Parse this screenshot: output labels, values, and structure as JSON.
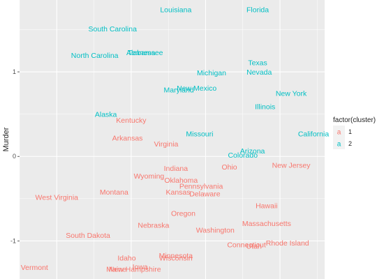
{
  "chart_data": {
    "type": "scatter",
    "ylabel": "Murder",
    "y_ticks": [
      1,
      0,
      -1
    ],
    "y_tick_labels": [
      "1",
      "0",
      "-1"
    ],
    "x_gridlines": [
      -1.5,
      -0.5,
      0.5,
      1.5
    ],
    "xlim": [
      -2.0,
      2.1
    ],
    "ylim": [
      -1.45,
      1.85
    ],
    "grid": true,
    "legend": {
      "title": "factor(cluster)",
      "placement": "right",
      "key_glyph": "a",
      "entries": [
        {
          "label": "1",
          "color": "#F8766D"
        },
        {
          "label": "2",
          "color": "#00BFC4"
        }
      ]
    },
    "series": [
      {
        "cluster": "1",
        "color": "#F8766D",
        "points": [
          {
            "label": "Kentucky",
            "x": -0.5,
            "y": 0.43
          },
          {
            "label": "Arkansas",
            "x": -0.55,
            "y": 0.22
          },
          {
            "label": "Virginia",
            "x": -0.03,
            "y": 0.15
          },
          {
            "label": "Indiana",
            "x": 0.1,
            "y": -0.14
          },
          {
            "label": "Ohio",
            "x": 0.82,
            "y": -0.12
          },
          {
            "label": "New Jersey",
            "x": 1.65,
            "y": -0.1
          },
          {
            "label": "Wyoming",
            "x": -0.26,
            "y": -0.23
          },
          {
            "label": "Oklahoma",
            "x": 0.17,
            "y": -0.28
          },
          {
            "label": "Pennsylvania",
            "x": 0.44,
            "y": -0.35
          },
          {
            "label": "Montana",
            "x": -0.73,
            "y": -0.42
          },
          {
            "label": "Kansas",
            "x": 0.13,
            "y": -0.42
          },
          {
            "label": "Delaware",
            "x": 0.49,
            "y": -0.44
          },
          {
            "label": "West Virginia",
            "x": -1.5,
            "y": -0.48
          },
          {
            "label": "Hawaii",
            "x": 1.32,
            "y": -0.58
          },
          {
            "label": "Oregon",
            "x": 0.2,
            "y": -0.67
          },
          {
            "label": "Massachusetts",
            "x": 1.32,
            "y": -0.79
          },
          {
            "label": "Nebraska",
            "x": -0.2,
            "y": -0.81
          },
          {
            "label": "Washington",
            "x": 0.63,
            "y": -0.87
          },
          {
            "label": "South Dakota",
            "x": -1.08,
            "y": -0.93
          },
          {
            "label": "Connecticut",
            "x": 1.05,
            "y": -1.04
          },
          {
            "label": "Utah",
            "x": 1.15,
            "y": -1.06
          },
          {
            "label": "Rhode Island",
            "x": 1.6,
            "y": -1.02
          },
          {
            "label": "Idaho",
            "x": -0.56,
            "y": -1.2
          },
          {
            "label": "Minnesota",
            "x": 0.1,
            "y": -1.17
          },
          {
            "label": "Wisconsin",
            "x": 0.1,
            "y": -1.2
          },
          {
            "label": "Iowa",
            "x": -0.38,
            "y": -1.3
          },
          {
            "label": "Maine",
            "x": -0.7,
            "y": -1.33
          },
          {
            "label": "New Hampshire",
            "x": -0.45,
            "y": -1.33
          },
          {
            "label": "Vermont",
            "x": -1.8,
            "y": -1.31
          }
        ]
      },
      {
        "cluster": "2",
        "color": "#00BFC4",
        "points": [
          {
            "label": "Louisiana",
            "x": 0.1,
            "y": 1.74
          },
          {
            "label": "Florida",
            "x": 1.2,
            "y": 1.74
          },
          {
            "label": "South Carolina",
            "x": -0.75,
            "y": 1.51
          },
          {
            "label": "North Carolina",
            "x": -0.99,
            "y": 1.2
          },
          {
            "label": "Alabama",
            "x": -0.37,
            "y": 1.23
          },
          {
            "label": "Tennessee",
            "x": -0.31,
            "y": 1.23
          },
          {
            "label": "Texas",
            "x": 1.2,
            "y": 1.11
          },
          {
            "label": "Michigan",
            "x": 0.58,
            "y": 0.99
          },
          {
            "label": "Nevada",
            "x": 1.22,
            "y": 1.0
          },
          {
            "label": "Maryland",
            "x": 0.14,
            "y": 0.79
          },
          {
            "label": "New Mexico",
            "x": 0.38,
            "y": 0.81
          },
          {
            "label": "New York",
            "x": 1.65,
            "y": 0.75
          },
          {
            "label": "Illinois",
            "x": 1.3,
            "y": 0.59
          },
          {
            "label": "Alaska",
            "x": -0.84,
            "y": 0.5
          },
          {
            "label": "Missouri",
            "x": 0.42,
            "y": 0.27
          },
          {
            "label": "California",
            "x": 1.95,
            "y": 0.27
          },
          {
            "label": "Arizona",
            "x": 1.13,
            "y": 0.07
          },
          {
            "label": "Colorado",
            "x": 1.0,
            "y": 0.02
          }
        ]
      }
    ]
  }
}
